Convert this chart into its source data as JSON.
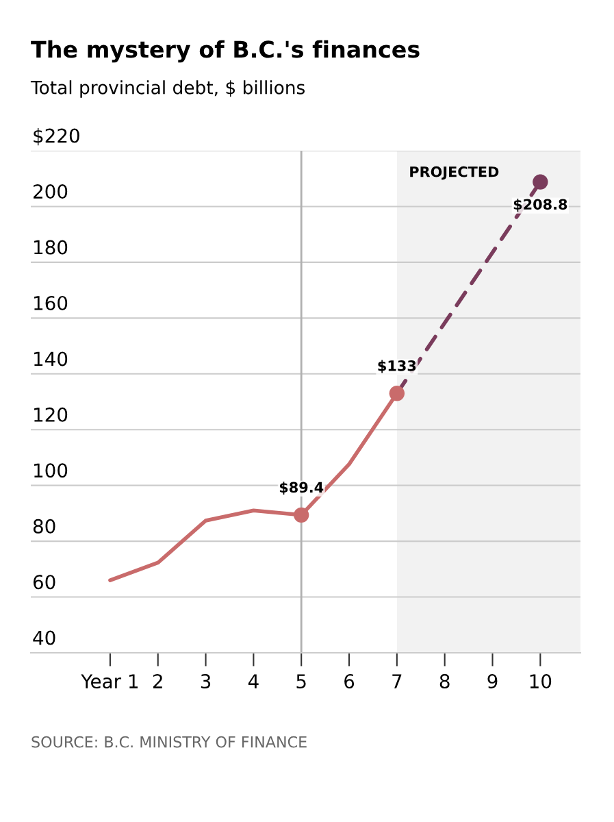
{
  "chart_data": {
    "type": "line",
    "title": "The mystery of B.C.'s finances",
    "subtitle": "Total provincial debt, $ billions",
    "series": [
      {
        "color": "#c96b6b",
        "line_style": "solid",
        "x": [
          1,
          2,
          3,
          4,
          5,
          6,
          7
        ],
        "values": [
          66,
          72.3,
          87.4,
          91,
          89.4,
          107.6,
          133
        ]
      },
      {
        "color": "#7a3c5c",
        "line_style": "dashed",
        "x": [
          7,
          10
        ],
        "values": [
          133,
          208.8
        ]
      },
      {
        "type": "scatter",
        "marker": "circle",
        "colors": [
          "#c96b6b",
          "#c96b6b",
          "#7a3c5c"
        ],
        "x": [
          5,
          7,
          10
        ],
        "values": [
          89.4,
          133,
          208.8
        ],
        "value_labels": [
          "$89.4",
          "$133",
          "$208.8"
        ]
      }
    ],
    "xlim": [
      -0.66,
      10.84
    ],
    "xticks": [
      {
        "value": 1,
        "label": "Year 1"
      },
      2,
      3,
      4,
      5,
      6,
      7,
      8,
      9,
      10
    ],
    "ylim": [
      40,
      220
    ],
    "yticks": [
      40,
      60,
      80,
      100,
      120,
      140,
      160,
      180,
      200,
      {
        "value": 220,
        "label": "$220"
      }
    ],
    "grid": "y",
    "legend": false,
    "ref_lines": [
      {
        "axis": "x",
        "value": 5,
        "color": "#b0b0b0"
      }
    ],
    "bands": [
      {
        "axis": "x",
        "from": 7,
        "to": 10.84,
        "label": "PROJECTED",
        "color": "#f2f2f2"
      }
    ],
    "annotations": [
      "SOURCE: B.C. MINISTRY OF FINANCE"
    ]
  }
}
